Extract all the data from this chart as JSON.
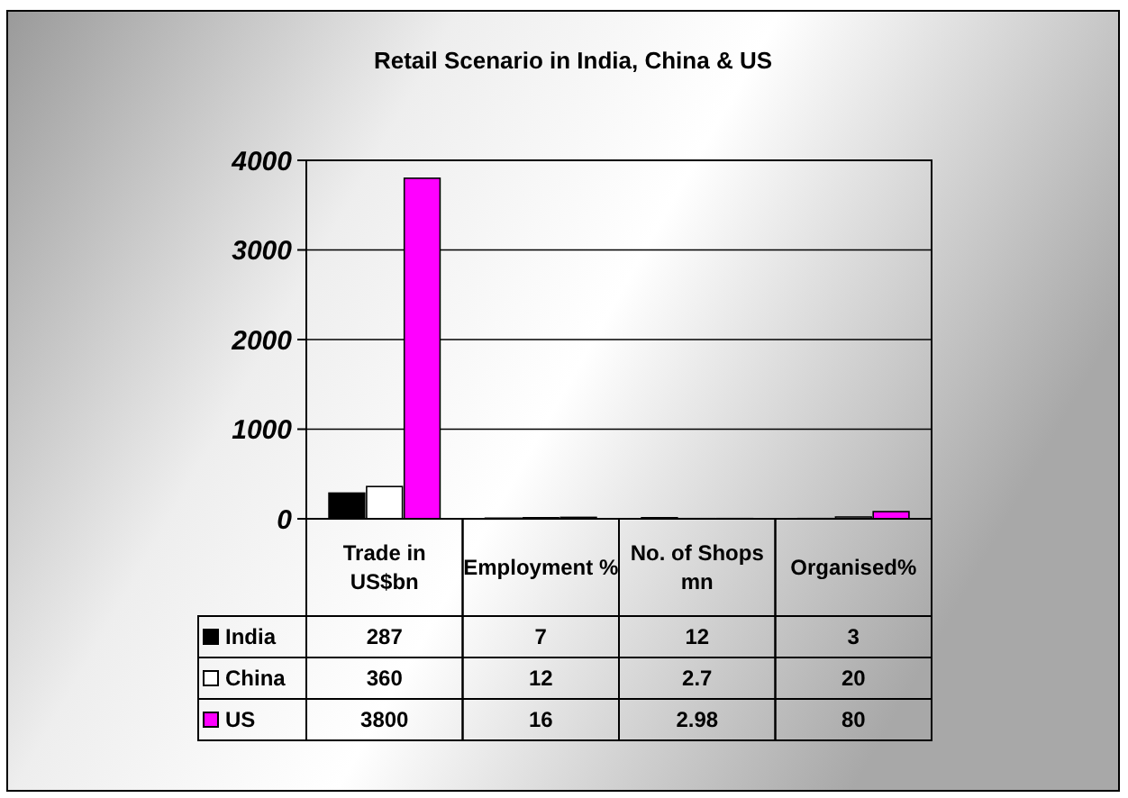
{
  "chart_data": {
    "type": "bar",
    "title": "Retail Scenario in India, China & US",
    "categories": [
      "Trade in US$bn",
      "Employment %",
      "No. of Shops mn",
      "Organised%"
    ],
    "series": [
      {
        "name": "India",
        "color": "#000000",
        "values": [
          287,
          7,
          12,
          3
        ]
      },
      {
        "name": "China",
        "color": "#ffffff",
        "values": [
          360,
          12,
          2.7,
          20
        ]
      },
      {
        "name": "US",
        "color": "#ff00ff",
        "values": [
          3800,
          16,
          2.98,
          80
        ]
      }
    ],
    "ylim": [
      0,
      4000
    ],
    "yticks": [
      0,
      1000,
      2000,
      3000,
      4000
    ],
    "grid": "y",
    "legend": "bottom left",
    "data_labels": true
  }
}
